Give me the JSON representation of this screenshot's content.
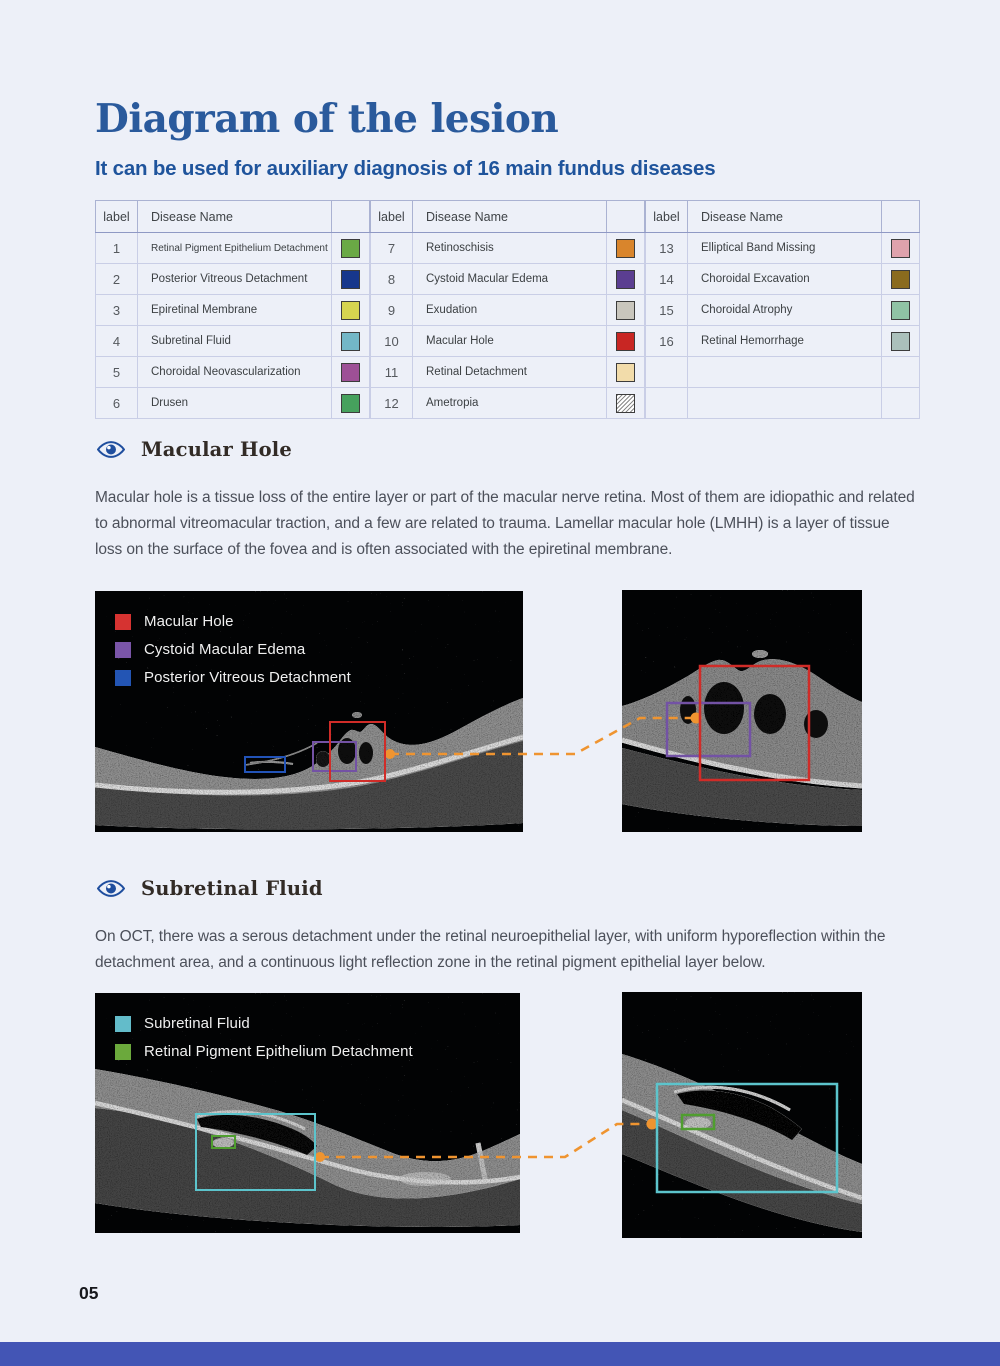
{
  "page": {
    "number": "05",
    "background": "#edf0f8"
  },
  "header": {
    "title": "Diagram of the lesion",
    "subtitle": "It can be used for auxiliary diagnosis of 16 main fundus diseases",
    "accent_color": "#2a5a9c"
  },
  "legend_table": {
    "label_header": "label",
    "name_header": "Disease Name",
    "groups": [
      {
        "rows": [
          {
            "label": "1",
            "name": "Retinal Pigment Epithelium Detachment",
            "color": "#6aa945"
          },
          {
            "label": "2",
            "name": "Posterior Vitreous Detachment",
            "color": "#17378c"
          },
          {
            "label": "3",
            "name": "Epiretinal Membrane",
            "color": "#d6d44f"
          },
          {
            "label": "4",
            "name": "Subretinal Fluid",
            "color": "#73b7c7"
          },
          {
            "label": "5",
            "name": "Choroidal Neovascularization",
            "color": "#9d5096"
          },
          {
            "label": "6",
            "name": "Drusen",
            "color": "#46a15d"
          }
        ]
      },
      {
        "rows": [
          {
            "label": "7",
            "name": "Retinoschisis",
            "color": "#d9852c"
          },
          {
            "label": "8",
            "name": "Cystoid Macular Edema",
            "color": "#5b3e91"
          },
          {
            "label": "9",
            "name": "Exudation",
            "color": "#c9c6bd"
          },
          {
            "label": "10",
            "name": "Macular Hole",
            "color": "#c82623"
          },
          {
            "label": "11",
            "name": "Retinal Detachment",
            "color": "#f2dcaa"
          },
          {
            "label": "12",
            "name": "Ametropia",
            "color": "#ffffff",
            "hatch": true
          }
        ]
      },
      {
        "rows": [
          {
            "label": "13",
            "name": "Elliptical Band Missing",
            "color": "#dfa2ac"
          },
          {
            "label": "14",
            "name": "Choroidal Excavation",
            "color": "#8a6b1e"
          },
          {
            "label": "15",
            "name": "Choroidal Atrophy",
            "color": "#90c3a5"
          },
          {
            "label": "16",
            "name": "Retinal Hemorrhage",
            "color": "#abc0bb"
          },
          {
            "label": "",
            "name": "",
            "color": null
          },
          {
            "label": "",
            "name": "",
            "color": null
          }
        ]
      }
    ]
  },
  "sections": [
    {
      "heading": "Macular Hole",
      "paragraph": "Macular hole is a tissue loss of the entire layer or part of the macular nerve retina. Most of them are idiopathic and related to abnormal vitreomacular traction, and a few are related to trauma. Lamellar macular hole (LMHH) is a layer of tissue loss on the surface of the fovea and is often associated with the epiretinal membrane.",
      "legend": [
        {
          "label": "Macular Hole",
          "color": "#d63331"
        },
        {
          "label": "Cystoid Macular Edema",
          "color": "#7a55a8"
        },
        {
          "label": "Posterior Vitreous Detachment",
          "color": "#2355b4"
        }
      ]
    },
    {
      "heading": "Subretinal Fluid",
      "paragraph": "On OCT, there was a serous detachment under the retinal neuroepithelial layer, with uniform hyporeflection within the detachment area, and a continuous light reflection zone in the retinal pigment epithelial layer below.",
      "legend": [
        {
          "label": "Subretinal Fluid",
          "color": "#63bcca"
        },
        {
          "label": "Retinal Pigment Epithelium Detachment",
          "color": "#6ba93c"
        }
      ]
    }
  ],
  "annotations": {
    "connector_color": "#ef9430",
    "box_colors": {
      "red": "#d02c28",
      "purple": "#7352a5",
      "blue": "#2253b8",
      "teal": "#5cc4cc",
      "green": "#4f9e2f"
    }
  },
  "footer": {
    "bar_color": "#4355b5"
  }
}
